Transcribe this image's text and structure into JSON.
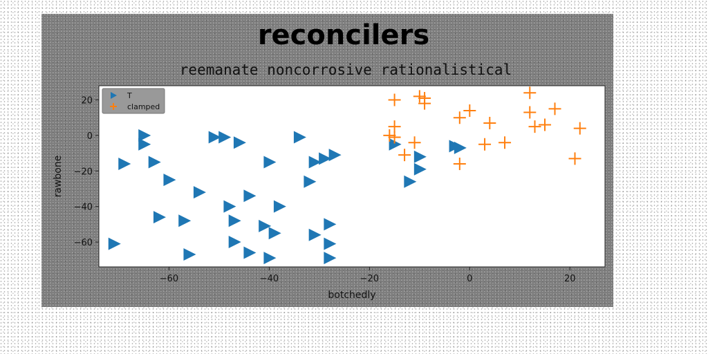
{
  "chart_data": {
    "type": "scatter",
    "title": "reconcilers",
    "subtitle": "reemanate noncorrosive rationalistical",
    "xlabel": "botchedly",
    "ylabel": "rawbone",
    "xlim": [
      -74,
      27
    ],
    "ylim": [
      -74,
      28
    ],
    "xticks": [
      -60,
      -40,
      -20,
      0,
      20
    ],
    "yticks": [
      -60,
      -40,
      -20,
      0,
      20
    ],
    "xtick_labels": [
      "−60",
      "−40",
      "−20",
      "0",
      "20"
    ],
    "ytick_labels": [
      "−60",
      "−40",
      "−20",
      "0",
      "20"
    ],
    "grid": false,
    "legend_position": "top-left",
    "series": [
      {
        "name": "T",
        "marker": "triangle-right",
        "color": "#1f77b4",
        "points": [
          [
            -65,
            0
          ],
          [
            -65,
            -5
          ],
          [
            -63,
            -15
          ],
          [
            -69,
            -16
          ],
          [
            -60,
            -25
          ],
          [
            -54,
            -32
          ],
          [
            -51,
            -1
          ],
          [
            -49,
            -1
          ],
          [
            -46,
            -4
          ],
          [
            -34,
            -1
          ],
          [
            -40,
            -15
          ],
          [
            -31,
            -15
          ],
          [
            -29,
            -13
          ],
          [
            -27,
            -11
          ],
          [
            -32,
            -26
          ],
          [
            -44,
            -34
          ],
          [
            -48,
            -40
          ],
          [
            -38,
            -40
          ],
          [
            -62,
            -46
          ],
          [
            -57,
            -48
          ],
          [
            -47,
            -48
          ],
          [
            -41,
            -51
          ],
          [
            -39,
            -55
          ],
          [
            -31,
            -56
          ],
          [
            -28,
            -50
          ],
          [
            -71,
            -61
          ],
          [
            -47,
            -60
          ],
          [
            -44,
            -66
          ],
          [
            -28,
            -61
          ],
          [
            -56,
            -67
          ],
          [
            -40,
            -69
          ],
          [
            -28,
            -69
          ],
          [
            -15,
            -5
          ],
          [
            -10,
            -12
          ],
          [
            -10,
            -19
          ],
          [
            -12,
            -26
          ],
          [
            -3,
            -6
          ],
          [
            -2,
            -7
          ]
        ]
      },
      {
        "name": "clamped",
        "marker": "plus",
        "color": "#ff7f0e",
        "points": [
          [
            -15,
            20
          ],
          [
            -10,
            22
          ],
          [
            -9,
            21
          ],
          [
            -9,
            18
          ],
          [
            -15,
            5
          ],
          [
            -16,
            0
          ],
          [
            -15,
            -1
          ],
          [
            -11,
            -4
          ],
          [
            -13,
            -11
          ],
          [
            -2,
            10
          ],
          [
            0,
            14
          ],
          [
            4,
            7
          ],
          [
            3,
            -5
          ],
          [
            7,
            -4
          ],
          [
            -2,
            -16
          ],
          [
            12,
            24
          ],
          [
            12,
            13
          ],
          [
            13,
            5
          ],
          [
            15,
            6
          ],
          [
            17,
            15
          ],
          [
            22,
            4
          ],
          [
            21,
            -13
          ]
        ]
      }
    ]
  }
}
